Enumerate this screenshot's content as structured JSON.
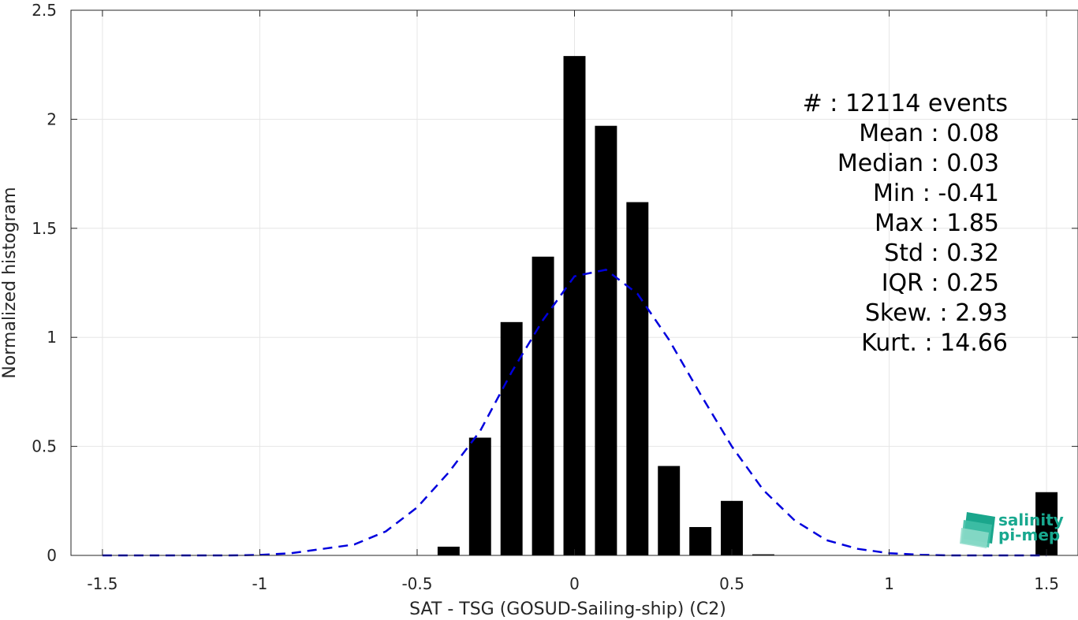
{
  "chart_data": {
    "type": "bar",
    "xlabel": "SAT - TSG (GOSUD-Sailing-ship) (C2)",
    "ylabel": "Normalized histogram",
    "xlim": [
      -1.6,
      1.6
    ],
    "ylim": [
      0,
      2.5
    ],
    "x_ticks": [
      -1.5,
      -1,
      -0.5,
      0,
      0.5,
      1,
      1.5
    ],
    "x_tick_labels": [
      "-1.5",
      "-1",
      "-0.5",
      "0",
      "0.5",
      "1",
      "1.5"
    ],
    "y_ticks": [
      0,
      0.5,
      1,
      1.5,
      2,
      2.5
    ],
    "y_tick_labels": [
      "0",
      "0.5",
      "1",
      "1.5",
      "2",
      "2.5"
    ],
    "grid": true,
    "bar_width": 0.07,
    "bars": {
      "x": [
        -0.4,
        -0.3,
        -0.2,
        -0.1,
        0.0,
        0.1,
        0.2,
        0.3,
        0.4,
        0.5,
        0.6,
        1.5
      ],
      "y": [
        0.04,
        0.54,
        1.07,
        1.37,
        2.29,
        1.97,
        1.62,
        0.41,
        0.13,
        0.25,
        0.005,
        0.29
      ],
      "color": "#000000"
    },
    "series": [
      {
        "style": "dashed",
        "color": "#0000dd",
        "x": [
          -1.5,
          -1.4,
          -1.3,
          -1.2,
          -1.1,
          -1.0,
          -0.9,
          -0.8,
          -0.7,
          -0.6,
          -0.5,
          -0.4,
          -0.3,
          -0.2,
          -0.1,
          0.0,
          0.1,
          0.2,
          0.3,
          0.4,
          0.5,
          0.6,
          0.7,
          0.8,
          0.9,
          1.0,
          1.1,
          1.2,
          1.3,
          1.4,
          1.5
        ],
        "y": [
          0.0,
          0.0,
          0.0,
          0.0,
          0.0,
          0.002,
          0.01,
          0.03,
          0.05,
          0.11,
          0.22,
          0.38,
          0.57,
          0.84,
          1.08,
          1.28,
          1.31,
          1.2,
          0.99,
          0.74,
          0.5,
          0.3,
          0.16,
          0.07,
          0.03,
          0.01,
          0.003,
          0.0,
          0.0,
          0.0,
          0.0
        ]
      }
    ],
    "annotations": [
      "#  : 12114 events",
      "Mean : 0.08",
      "Median : 0.03",
      "Min : -0.41",
      "Max : 1.85",
      "Std : 0.32",
      "IQR : 0.25",
      "Skew. : 2.93",
      "Kurt. : 14.66"
    ]
  },
  "logo": {
    "line1": "salinity",
    "line2": "pi-mep",
    "color": "#18a88f"
  }
}
